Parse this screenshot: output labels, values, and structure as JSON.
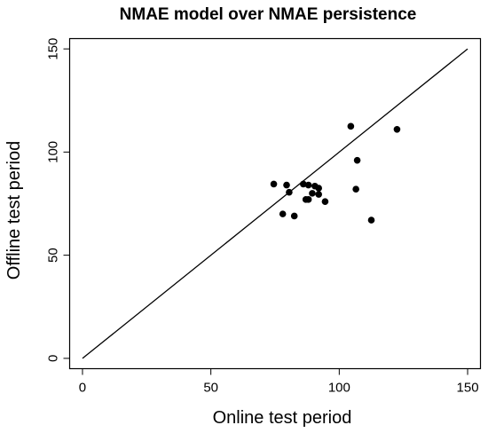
{
  "chart_data": {
    "type": "scatter",
    "title": "NMAE model over NMAE persistence",
    "xlabel": "Online test period",
    "ylabel": "Offline test period",
    "xlim": [
      -5,
      155
    ],
    "ylim": [
      -5,
      155
    ],
    "xticks": [
      0,
      50,
      100,
      150
    ],
    "yticks": [
      0,
      50,
      100,
      150
    ],
    "grid": false,
    "legend": "none",
    "reference_line": {
      "from": [
        0,
        0
      ],
      "to": [
        150,
        150
      ]
    },
    "marker_color": "#000000",
    "points": [
      {
        "x": 74.5,
        "y": 84.5
      },
      {
        "x": 79.5,
        "y": 84
      },
      {
        "x": 80.5,
        "y": 80.5
      },
      {
        "x": 78,
        "y": 70
      },
      {
        "x": 82.5,
        "y": 69
      },
      {
        "x": 86,
        "y": 84.5
      },
      {
        "x": 88,
        "y": 84
      },
      {
        "x": 87,
        "y": 77
      },
      {
        "x": 88,
        "y": 77
      },
      {
        "x": 89.5,
        "y": 80
      },
      {
        "x": 90.5,
        "y": 83.5
      },
      {
        "x": 92,
        "y": 82.5
      },
      {
        "x": 92,
        "y": 79.5
      },
      {
        "x": 94.5,
        "y": 76
      },
      {
        "x": 104.5,
        "y": 112.5
      },
      {
        "x": 106.5,
        "y": 82
      },
      {
        "x": 107,
        "y": 96
      },
      {
        "x": 112.5,
        "y": 67
      },
      {
        "x": 122.5,
        "y": 111
      }
    ]
  }
}
